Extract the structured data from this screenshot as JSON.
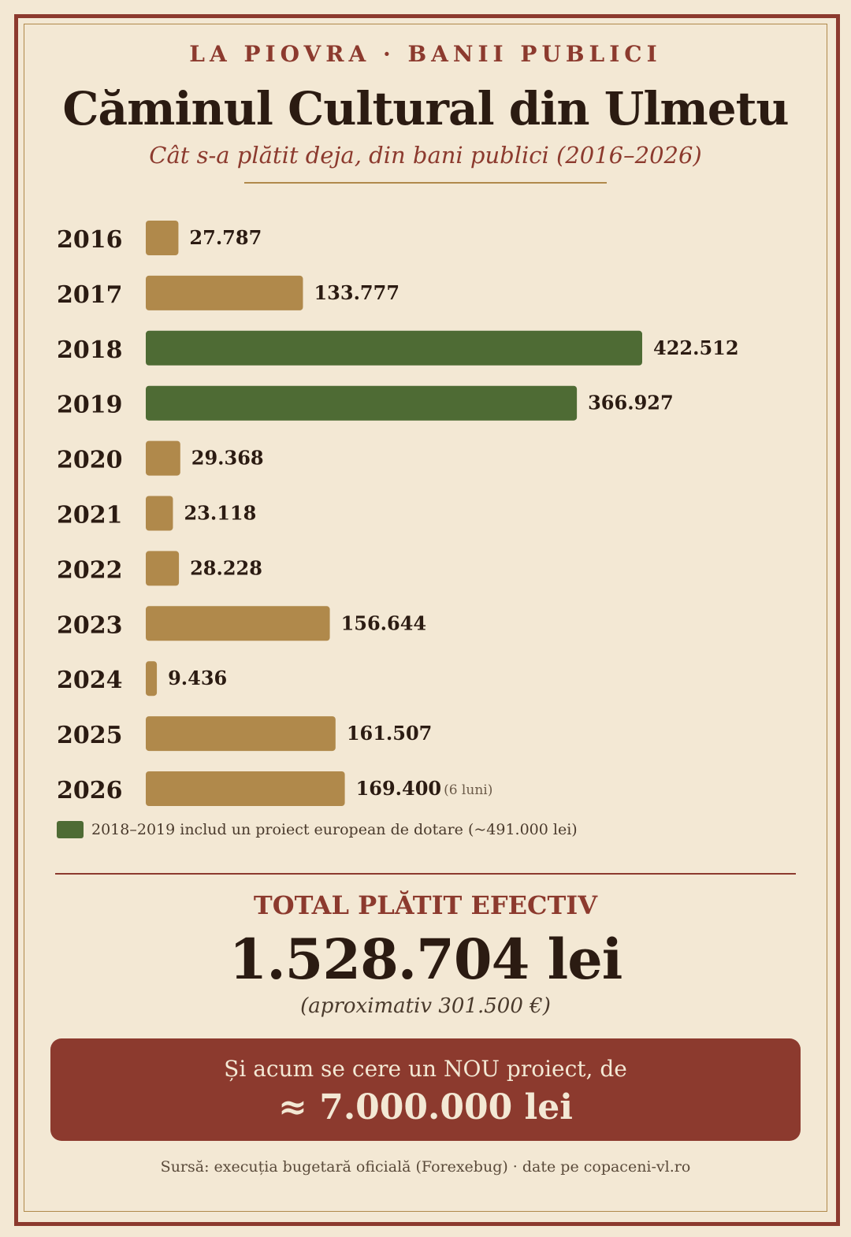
{
  "header": {
    "kicker": "LA PIOVRA  ·  BANII PUBLICI",
    "title": "Căminul Cultural din Ulmetu",
    "subtitle": "Cât s-a plătit deja, din bani publici (2016–2026)"
  },
  "colors": {
    "primary": "#8c3a2e",
    "bar_default": "#b0894b",
    "bar_highlight": "#4e6b34",
    "background": "#f3e8d4",
    "text": "#2b1b12"
  },
  "chart_data": {
    "type": "bar",
    "orientation": "horizontal",
    "categories": [
      "2016",
      "2017",
      "2018",
      "2019",
      "2020",
      "2021",
      "2022",
      "2023",
      "2024",
      "2025",
      "2026"
    ],
    "values": [
      27787,
      133777,
      422512,
      366927,
      29368,
      23118,
      28228,
      156644,
      9436,
      161507,
      169400
    ],
    "value_labels": [
      "27.787",
      "133.777",
      "422.512",
      "366.927",
      "29.368",
      "23.118",
      "28.228",
      "156.644",
      "9.436",
      "161.507",
      "169.400"
    ],
    "highlight": [
      false,
      false,
      true,
      true,
      false,
      false,
      false,
      false,
      false,
      false,
      false
    ],
    "notes": [
      "",
      "",
      "",
      "",
      "",
      "",
      "",
      "",
      "",
      "",
      "(6 luni)"
    ],
    "unit": "lei",
    "grid": false,
    "legend": {
      "position": "bottom-left",
      "entries": [
        "2018–2019 includ un proiect european de dotare (~491.000 lei)"
      ]
    }
  },
  "summary": {
    "total_label": "TOTAL PLĂTIT EFECTIV",
    "total_value": "1.528.704 lei",
    "total_approx": "(aproximativ 301.500 €)"
  },
  "callout": {
    "line1": "Și acum se cere un NOU proiect, de",
    "line2": "≈ 7.000.000 lei"
  },
  "footer": {
    "source": "Sursă: execuția bugetară oficială (Forexebug) · date pe copaceni-vl.ro"
  }
}
